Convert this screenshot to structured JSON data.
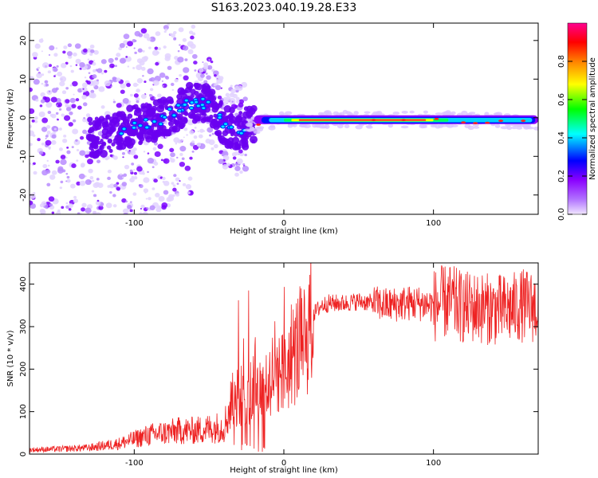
{
  "title": "S163.2023.040.19.28.E33",
  "chart_data": [
    {
      "type": "heatmap",
      "xlabel": "Height of straight line (km)",
      "ylabel": "Frequency (Hz)",
      "xlim": [
        -170,
        170
      ],
      "ylim": [
        -25,
        24.5
      ],
      "xticks": [
        -100,
        0,
        100
      ],
      "yticks": [
        -20,
        -10,
        0,
        10,
        20
      ],
      "ridge": {
        "description_points_x": [
          -160,
          -120,
          -100,
          -80,
          -60,
          -50,
          -40,
          -30,
          -20,
          0,
          50,
          100,
          170
        ],
        "frequency_hz": [
          -5,
          -5,
          -2,
          0,
          4,
          4,
          -2,
          -3,
          -2,
          -0.5,
          -0.5,
          -0.5,
          -1
        ]
      },
      "colorbar": {
        "label": "Normalized spectral amplitude",
        "range": [
          0,
          1
        ],
        "ticks": [
          0.0,
          0.2,
          0.4,
          0.6,
          0.8
        ],
        "colors": [
          "#f0e6ff",
          "#8a00ff",
          "#0000ff",
          "#00ffff",
          "#00ff00",
          "#ffff00",
          "#ff8000",
          "#ff0000",
          "#ff0090"
        ]
      }
    },
    {
      "type": "line",
      "xlabel": "Height of straight line (km)",
      "ylabel": "SNR (10 * v/v)",
      "xlim": [
        -170,
        170
      ],
      "ylim": [
        0,
        450
      ],
      "xticks": [
        -100,
        0,
        100
      ],
      "yticks": [
        0,
        100,
        200,
        300,
        400
      ],
      "color": "#ee2222",
      "x": [
        -170,
        -150,
        -130,
        -110,
        -100,
        -90,
        -80,
        -70,
        -60,
        -50,
        -40,
        -35,
        -30,
        -25,
        -20,
        -15,
        -10,
        -5,
        0,
        5,
        10,
        15,
        20,
        25,
        30,
        40,
        50,
        60,
        70,
        80,
        90,
        100,
        110,
        120,
        130,
        140,
        150,
        160,
        170
      ],
      "y": [
        10,
        12,
        15,
        25,
        35,
        45,
        50,
        55,
        55,
        60,
        65,
        120,
        150,
        130,
        190,
        140,
        180,
        200,
        185,
        230,
        255,
        290,
        330,
        350,
        355,
        355,
        360,
        355,
        350,
        355,
        355,
        350,
        360,
        345,
        345,
        340,
        340,
        350,
        345
      ]
    }
  ]
}
